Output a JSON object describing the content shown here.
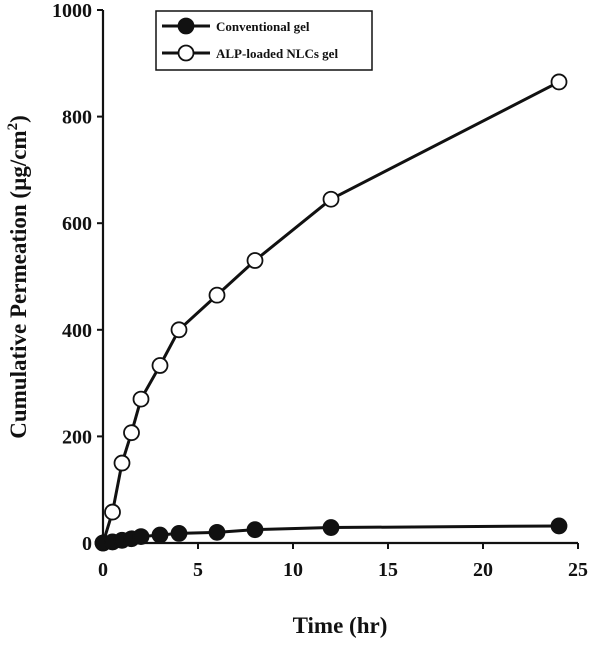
{
  "chart_data": {
    "type": "line",
    "title": "",
    "xlabel": "Time (hr)",
    "ylabel_main": "Cumulative Permeation (µg/cm",
    "ylabel_sup": "2",
    "ylabel_close": ")",
    "xlim": [
      0,
      25
    ],
    "ylim": [
      0,
      1000
    ],
    "xticks": [
      0,
      5,
      10,
      15,
      20,
      25
    ],
    "yticks": [
      0,
      200,
      400,
      600,
      800,
      1000
    ],
    "grid": false,
    "legend_position": "top-left",
    "series": [
      {
        "name": "Conventional gel",
        "marker": "filled-circle",
        "color": "#111111",
        "x": [
          0,
          0.5,
          1,
          1.5,
          2,
          3,
          4,
          6,
          8,
          12,
          24
        ],
        "y": [
          0,
          2,
          5,
          8,
          12,
          15,
          18,
          20,
          25,
          29,
          32
        ]
      },
      {
        "name": "ALP-loaded NLCs gel",
        "marker": "open-circle",
        "color": "#111111",
        "x": [
          0,
          0.5,
          1,
          1.5,
          2,
          3,
          4,
          6,
          8,
          12,
          24
        ],
        "y": [
          0,
          58,
          150,
          207,
          270,
          333,
          400,
          465,
          530,
          645,
          865
        ]
      }
    ]
  }
}
